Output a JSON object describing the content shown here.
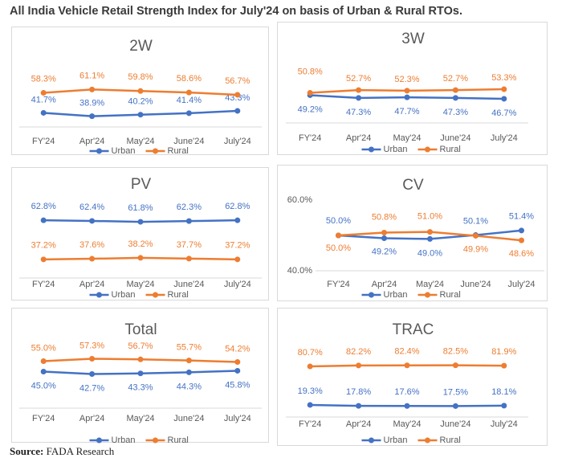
{
  "title": "All India Vehicle Retail Strength Index for July'24 on basis of Urban & Rural RTOs.",
  "source": {
    "label": "Source:",
    "value": "FADA Research"
  },
  "colors": {
    "urban": "#4472c4",
    "rural": "#ed7d31"
  },
  "chart_data": [
    {
      "id": "2w",
      "type": "line",
      "title": "2W",
      "categories": [
        "FY'24",
        "Apr'24",
        "May'24",
        "June'24",
        "July'24"
      ],
      "series": [
        {
          "name": "Urban",
          "values": [
            41.7,
            38.9,
            40.2,
            41.4,
            43.3
          ],
          "labels": [
            "41.7%",
            "38.9%",
            "40.2%",
            "41.4%",
            "43.3%"
          ]
        },
        {
          "name": "Rural",
          "values": [
            58.3,
            61.1,
            59.8,
            58.6,
            56.7
          ],
          "labels": [
            "58.3%",
            "61.1%",
            "59.8%",
            "58.6%",
            "56.7%"
          ]
        }
      ],
      "ylim": [
        30,
        70
      ],
      "legend": "bottom"
    },
    {
      "id": "3w",
      "type": "line",
      "title": "3W",
      "categories": [
        "FY'24",
        "Apr'24",
        "May'24",
        "June'24",
        "July'24"
      ],
      "series": [
        {
          "name": "Urban",
          "values": [
            49.2,
            47.3,
            47.7,
            47.3,
            46.7
          ],
          "labels": [
            "49.2%",
            "47.3%",
            "47.7%",
            "47.3%",
            "46.7%"
          ]
        },
        {
          "name": "Rural",
          "values": [
            50.8,
            52.7,
            52.3,
            52.7,
            53.3
          ],
          "labels": [
            "50.8%",
            "52.7%",
            "52.3%",
            "52.7%",
            "53.3%"
          ]
        }
      ],
      "ylim": [
        30,
        70
      ],
      "legend": "bottom"
    },
    {
      "id": "pv",
      "type": "line",
      "title": "PV",
      "categories": [
        "FY'24",
        "Apr'24",
        "May'24",
        "June'24",
        "July'24"
      ],
      "series": [
        {
          "name": "Urban",
          "values": [
            62.8,
            62.4,
            61.8,
            62.3,
            62.8
          ],
          "labels": [
            "62.8%",
            "62.4%",
            "61.8%",
            "62.3%",
            "62.8%"
          ]
        },
        {
          "name": "Rural",
          "values": [
            37.2,
            37.6,
            38.2,
            37.7,
            37.2
          ],
          "labels": [
            "37.2%",
            "37.6%",
            "38.2%",
            "37.7%",
            "37.2%"
          ]
        }
      ],
      "ylim": [
        25,
        75
      ],
      "legend": "bottom"
    },
    {
      "id": "cv",
      "type": "line",
      "title": "CV",
      "categories": [
        "FY'24",
        "Apr'24",
        "May'24",
        "June'24",
        "July'24"
      ],
      "series": [
        {
          "name": "Urban",
          "values": [
            50.0,
            49.2,
            49.0,
            50.1,
            51.4
          ],
          "labels": [
            "50.0%",
            "49.2%",
            "49.0%",
            "50.1%",
            "51.4%"
          ]
        },
        {
          "name": "Rural",
          "values": [
            50.0,
            50.8,
            51.0,
            49.9,
            48.6
          ],
          "labels": [
            "50.0%",
            "50.8%",
            "51.0%",
            "49.9%",
            "48.6%"
          ]
        }
      ],
      "ylim": [
        40,
        60
      ],
      "yticks": [
        "60.0%",
        "40.0%"
      ],
      "legend": "bottom"
    },
    {
      "id": "total",
      "type": "line",
      "title": "Total",
      "categories": [
        "FY'24",
        "Apr'24",
        "May'24",
        "June'24",
        "July'24"
      ],
      "series": [
        {
          "name": "Urban",
          "values": [
            45.0,
            42.7,
            43.3,
            44.3,
            45.8
          ],
          "labels": [
            "45.0%",
            "42.7%",
            "43.3%",
            "44.3%",
            "45.8%"
          ]
        },
        {
          "name": "Rural",
          "values": [
            55.0,
            57.3,
            56.7,
            55.7,
            54.2
          ],
          "labels": [
            "55.0%",
            "57.3%",
            "56.7%",
            "55.7%",
            "54.2%"
          ]
        }
      ],
      "ylim": [
        10,
        70
      ],
      "legend": "bottom"
    },
    {
      "id": "trac",
      "type": "line",
      "title": "TRAC",
      "categories": [
        "FY'24",
        "Apr'24",
        "May'24",
        "June'24",
        "July'24"
      ],
      "series": [
        {
          "name": "Urban",
          "values": [
            19.3,
            17.8,
            17.6,
            17.5,
            18.1
          ],
          "labels": [
            "19.3%",
            "17.8%",
            "17.6%",
            "17.5%",
            "18.1%"
          ]
        },
        {
          "name": "Rural",
          "values": [
            80.7,
            82.2,
            82.4,
            82.5,
            81.9
          ],
          "labels": [
            "80.7%",
            "82.2%",
            "82.4%",
            "82.5%",
            "81.9%"
          ]
        }
      ],
      "ylim": [
        0,
        100
      ],
      "legend": "bottom"
    }
  ]
}
